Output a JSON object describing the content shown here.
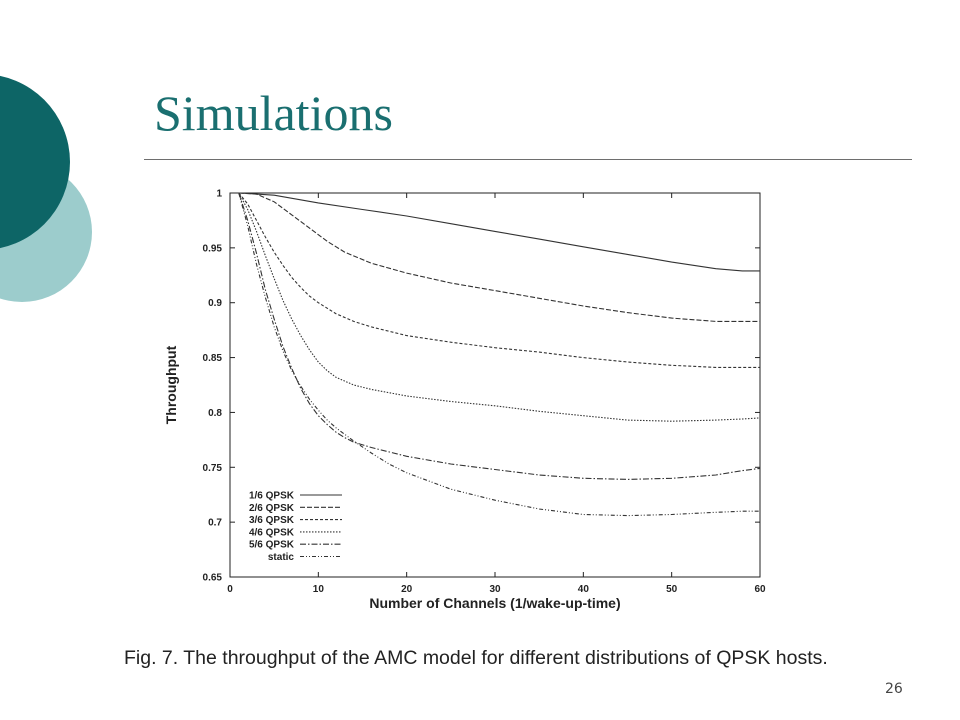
{
  "slide": {
    "title": "Simulations",
    "caption": "Fig. 7. The throughput of the AMC model for different distributions of QPSK hosts.",
    "page_number": "26",
    "colors": {
      "title": "#1a6f70",
      "circle_dark": "#0d6566",
      "circle_light": "#9ccccc"
    }
  },
  "chart_data": {
    "type": "line",
    "title": "",
    "xlabel": "Number of Channels (1/wake-up-time)",
    "ylabel": "Throughput",
    "xlim": [
      0,
      60
    ],
    "ylim": [
      0.65,
      1
    ],
    "xticks": [
      0,
      10,
      20,
      30,
      40,
      50,
      60
    ],
    "yticks": [
      0.65,
      0.7,
      0.75,
      0.8,
      0.85,
      0.9,
      0.95,
      1
    ],
    "grid": false,
    "legend_position": "bottom-left",
    "series": [
      {
        "name": "1/6 QPSK",
        "dash": "",
        "x": [
          1,
          5,
          10,
          15,
          20,
          25,
          30,
          35,
          40,
          45,
          50,
          55,
          58,
          60
        ],
        "y": [
          1.0,
          0.998,
          0.991,
          0.985,
          0.979,
          0.972,
          0.965,
          0.958,
          0.951,
          0.944,
          0.937,
          0.931,
          0.929,
          0.929
        ]
      },
      {
        "name": "2/6 QPSK",
        "dash": "5,2",
        "x": [
          1,
          3,
          5,
          7,
          9,
          11,
          13,
          16,
          20,
          25,
          30,
          35,
          40,
          45,
          50,
          55,
          58,
          60
        ],
        "y": [
          1.0,
          0.999,
          0.992,
          0.98,
          0.968,
          0.956,
          0.946,
          0.936,
          0.927,
          0.918,
          0.911,
          0.904,
          0.897,
          0.891,
          0.886,
          0.883,
          0.883,
          0.883
        ]
      },
      {
        "name": "3/6 QPSK",
        "dash": "3,2",
        "x": [
          1,
          2,
          3,
          4,
          5,
          6,
          7,
          8,
          9,
          10,
          12,
          14,
          16,
          20,
          25,
          30,
          35,
          40,
          45,
          50,
          55,
          58,
          60
        ],
        "y": [
          1.0,
          0.99,
          0.975,
          0.96,
          0.946,
          0.934,
          0.923,
          0.914,
          0.906,
          0.9,
          0.89,
          0.883,
          0.878,
          0.87,
          0.864,
          0.859,
          0.855,
          0.85,
          0.846,
          0.843,
          0.841,
          0.841,
          0.841
        ]
      },
      {
        "name": "4/6 QPSK",
        "dash": "1.5,1.5",
        "x": [
          1,
          2,
          3,
          4,
          5,
          6,
          7,
          8,
          9,
          10,
          11,
          12,
          14,
          16,
          20,
          25,
          30,
          35,
          40,
          45,
          50,
          55,
          58,
          60
        ],
        "y": [
          1.0,
          0.985,
          0.965,
          0.943,
          0.922,
          0.902,
          0.885,
          0.87,
          0.857,
          0.846,
          0.838,
          0.832,
          0.825,
          0.821,
          0.815,
          0.81,
          0.806,
          0.801,
          0.797,
          0.793,
          0.792,
          0.793,
          0.794,
          0.795
        ]
      },
      {
        "name": "5/6 QPSK",
        "dash": "6,2,1.5,2",
        "x": [
          1,
          2,
          3,
          4,
          5,
          6,
          7,
          8,
          9,
          10,
          11,
          12,
          13,
          14,
          16,
          18,
          20,
          25,
          30,
          35,
          40,
          45,
          50,
          55,
          58,
          60
        ],
        "y": [
          1.0,
          0.975,
          0.945,
          0.912,
          0.885,
          0.86,
          0.84,
          0.822,
          0.808,
          0.797,
          0.789,
          0.782,
          0.777,
          0.773,
          0.768,
          0.764,
          0.76,
          0.753,
          0.748,
          0.743,
          0.74,
          0.739,
          0.74,
          0.743,
          0.747,
          0.749
        ]
      },
      {
        "name": "static",
        "dash": "4,2,1,2,1,2",
        "x": [
          1,
          2,
          3,
          4,
          5,
          6,
          7,
          8,
          9,
          10,
          11,
          12,
          13,
          14,
          16,
          18,
          20,
          25,
          30,
          35,
          40,
          45,
          50,
          55,
          58,
          60
        ],
        "y": [
          1.0,
          0.97,
          0.935,
          0.905,
          0.878,
          0.856,
          0.838,
          0.824,
          0.812,
          0.802,
          0.793,
          0.786,
          0.78,
          0.774,
          0.763,
          0.753,
          0.745,
          0.73,
          0.72,
          0.712,
          0.707,
          0.706,
          0.707,
          0.709,
          0.71,
          0.71
        ]
      }
    ]
  }
}
